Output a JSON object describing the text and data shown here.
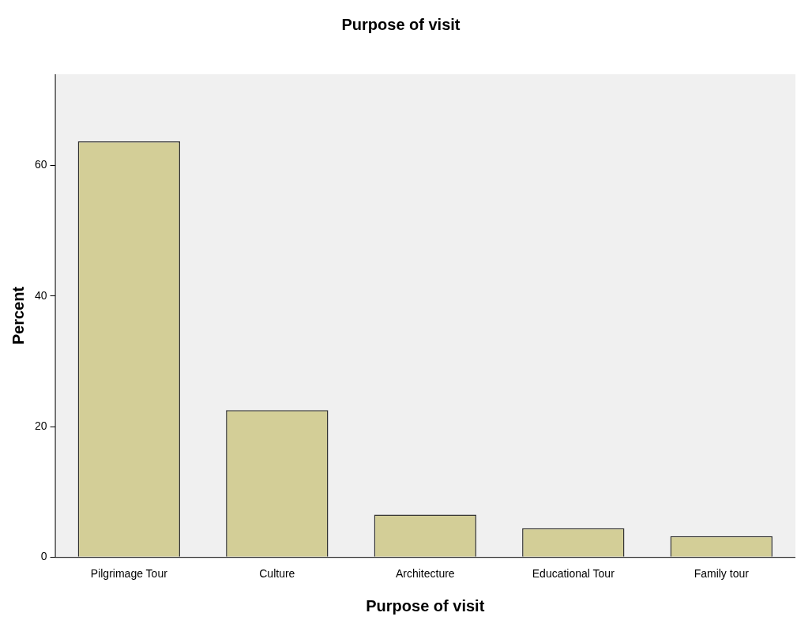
{
  "chart_data": {
    "type": "bar",
    "title": "Purpose of visit",
    "xlabel": "Purpose of visit",
    "ylabel": "Percent",
    "categories": [
      "Pilgrimage Tour",
      "Culture",
      "Architecture",
      "Educational Tour",
      "Family tour"
    ],
    "values": [
      63.7,
      22.5,
      6.5,
      4.4,
      3.2
    ],
    "color": "#d3ce97",
    "ylim": [
      0,
      74
    ],
    "yticks": [
      0,
      20,
      40,
      60
    ],
    "grid": false
  }
}
